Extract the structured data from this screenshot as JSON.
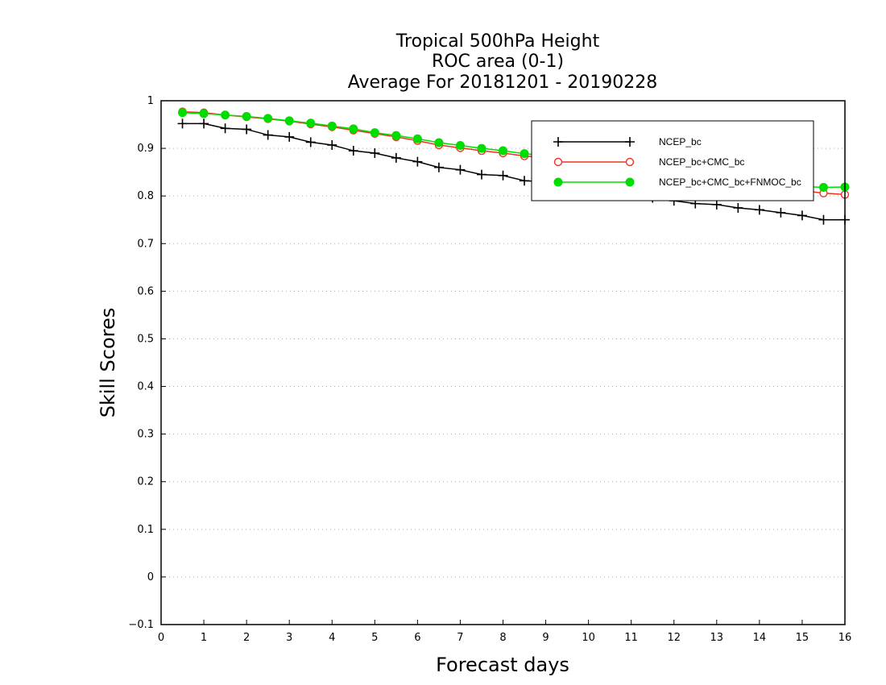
{
  "chart_data": {
    "type": "line",
    "title_lines": [
      "Tropical 500hPa Height",
      "ROC area (0-1)",
      "Average For 20181201 - 20190228"
    ],
    "xlabel": "Forecast days",
    "ylabel": "Skill Scores",
    "xlim": [
      0,
      16
    ],
    "ylim": [
      -0.1,
      1.0
    ],
    "x_ticks": [
      "0",
      "1",
      "2",
      "3",
      "4",
      "5",
      "6",
      "7",
      "8",
      "9",
      "10",
      "11",
      "12",
      "13",
      "14",
      "15",
      "16"
    ],
    "y_ticks": [
      "−0.1",
      "0",
      "0.1",
      "0.2",
      "0.3",
      "0.4",
      "0.5",
      "0.6",
      "0.7",
      "0.8",
      "0.9",
      "1"
    ],
    "y_tick_values": [
      -0.1,
      0,
      0.1,
      0.2,
      0.3,
      0.4,
      0.5,
      0.6,
      0.7,
      0.8,
      0.9,
      1.0
    ],
    "grid": "horizontal dotted",
    "legend_position": "top-right",
    "x": [
      0.5,
      1,
      1.5,
      2,
      2.5,
      3,
      3.5,
      4,
      4.5,
      5,
      5.5,
      6,
      6.5,
      7,
      7.5,
      8,
      8.5,
      9,
      9.5,
      10,
      10.5,
      11,
      11.5,
      12,
      12.5,
      13,
      13.5,
      14,
      14.5,
      15,
      15.5,
      16
    ],
    "series": [
      {
        "name": "NCEP_bc",
        "color": "#000000",
        "marker": "plus",
        "values": [
          0.952,
          0.952,
          0.942,
          0.94,
          0.928,
          0.924,
          0.913,
          0.907,
          0.895,
          0.89,
          0.88,
          0.872,
          0.86,
          0.855,
          0.845,
          0.843,
          0.832,
          0.83,
          0.825,
          0.82,
          0.81,
          0.802,
          0.796,
          0.79,
          0.784,
          0.782,
          0.775,
          0.771,
          0.765,
          0.759,
          0.75,
          0.75
        ]
      },
      {
        "name": "NCEP_bc+CMC_bc",
        "color": "#ee3322",
        "marker": "open-circle",
        "values": [
          0.977,
          0.975,
          0.97,
          0.966,
          0.962,
          0.957,
          0.951,
          0.945,
          0.938,
          0.931,
          0.924,
          0.916,
          0.907,
          0.901,
          0.895,
          0.89,
          0.884,
          0.88,
          0.875,
          0.87,
          0.864,
          0.858,
          0.852,
          0.846,
          0.84,
          0.834,
          0.828,
          0.822,
          0.817,
          0.811,
          0.806,
          0.803
        ]
      },
      {
        "name": "NCEP_bc+CMC_bc+FNMOC_bc",
        "color": "#00dd00",
        "marker": "filled-circle",
        "values": [
          0.975,
          0.973,
          0.97,
          0.967,
          0.963,
          0.958,
          0.953,
          0.947,
          0.941,
          0.933,
          0.927,
          0.92,
          0.912,
          0.906,
          0.9,
          0.895,
          0.889,
          0.884,
          0.878,
          0.873,
          0.867,
          0.861,
          0.856,
          0.85,
          0.844,
          0.838,
          0.833,
          0.828,
          0.823,
          0.82,
          0.818,
          0.819
        ]
      }
    ]
  }
}
